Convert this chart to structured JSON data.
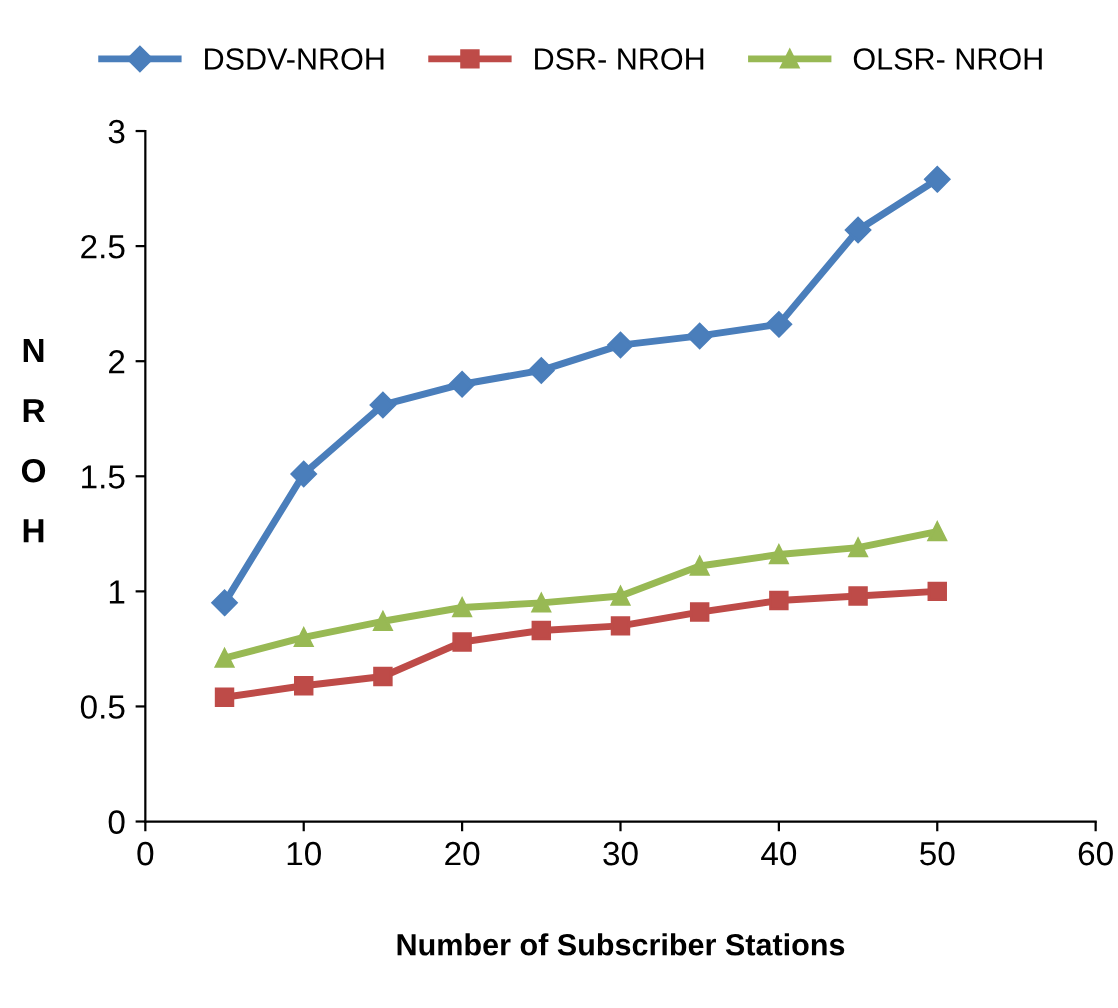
{
  "chart_data": {
    "type": "line",
    "xlabel": "Number of Subscriber Stations",
    "ylabel": "NROH",
    "x": [
      5,
      10,
      15,
      20,
      25,
      30,
      35,
      40,
      45,
      50
    ],
    "series": [
      {
        "name": "DSDV-NROH",
        "color": "#4a7ebb",
        "marker": "diamond",
        "values": [
          0.95,
          1.51,
          1.81,
          1.9,
          1.96,
          2.07,
          2.11,
          2.16,
          2.57,
          2.79
        ]
      },
      {
        "name": "DSR- NROH",
        "color": "#be4b48",
        "marker": "square",
        "values": [
          0.54,
          0.59,
          0.63,
          0.78,
          0.83,
          0.85,
          0.91,
          0.96,
          0.98,
          1.0
        ]
      },
      {
        "name": "OLSR- NROH",
        "color": "#98b954",
        "marker": "triangle",
        "values": [
          0.71,
          0.8,
          0.87,
          0.93,
          0.95,
          0.98,
          1.11,
          1.16,
          1.19,
          1.26
        ]
      }
    ],
    "xlim": [
      0,
      60
    ],
    "xticks": [
      0,
      10,
      20,
      30,
      40,
      50,
      60
    ],
    "ylim": [
      0,
      3
    ],
    "yticks": [
      0,
      0.5,
      1,
      1.5,
      2,
      2.5,
      3
    ],
    "legend": "top",
    "grid": false,
    "line_style": "solid"
  }
}
